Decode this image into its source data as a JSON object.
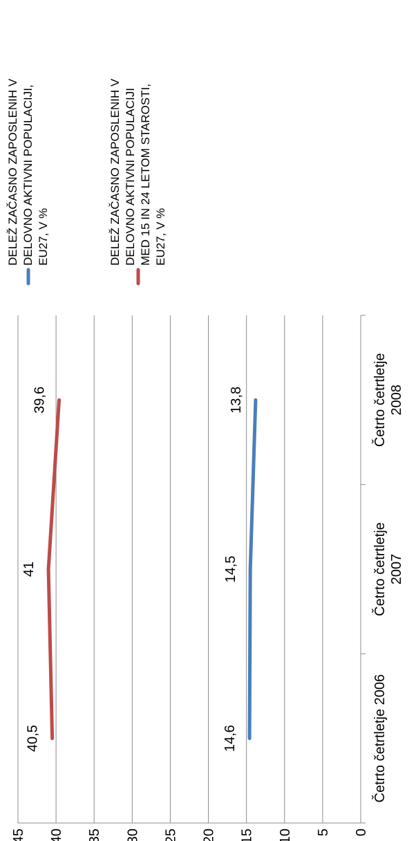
{
  "chart_data": {
    "type": "line",
    "orientation": "rotated-90-ccw",
    "title": "",
    "xlabel": "",
    "ylabel": "",
    "categories": [
      [
        "Četrto četrtletje 2006"
      ],
      [
        "Četrto četrtletje",
        "2007"
      ],
      [
        "Četrto četrtletje",
        "2008"
      ]
    ],
    "ylim": [
      0,
      45
    ],
    "yticks": [
      "0",
      "5",
      "10",
      "15",
      "20",
      "25",
      "30",
      "35",
      "40",
      "45"
    ],
    "series": [
      {
        "name": [
          "DELEŽ ZAČASNO ZAPOSLENIH V",
          "DELOVNO AKTIVNI POPULACIJI,",
          "EU27, V %"
        ],
        "values": [
          14.6,
          14.5,
          13.8
        ],
        "labels": [
          "14,6",
          "14,5",
          "13,8"
        ],
        "color": "#4a7ebb"
      },
      {
        "name": [
          "DELEŽ ZAČASNO ZAPOSLENIH V",
          "DELOVNO AKTIVNI POPULACIJI",
          "MED 15 IN 24 LETOM STAROSTI,",
          "EU27, V %"
        ],
        "values": [
          40.5,
          41,
          39.6
        ],
        "labels": [
          "40,5",
          "41",
          "39,6"
        ],
        "color": "#be4b48"
      }
    ],
    "grid": true,
    "legend": "right"
  }
}
